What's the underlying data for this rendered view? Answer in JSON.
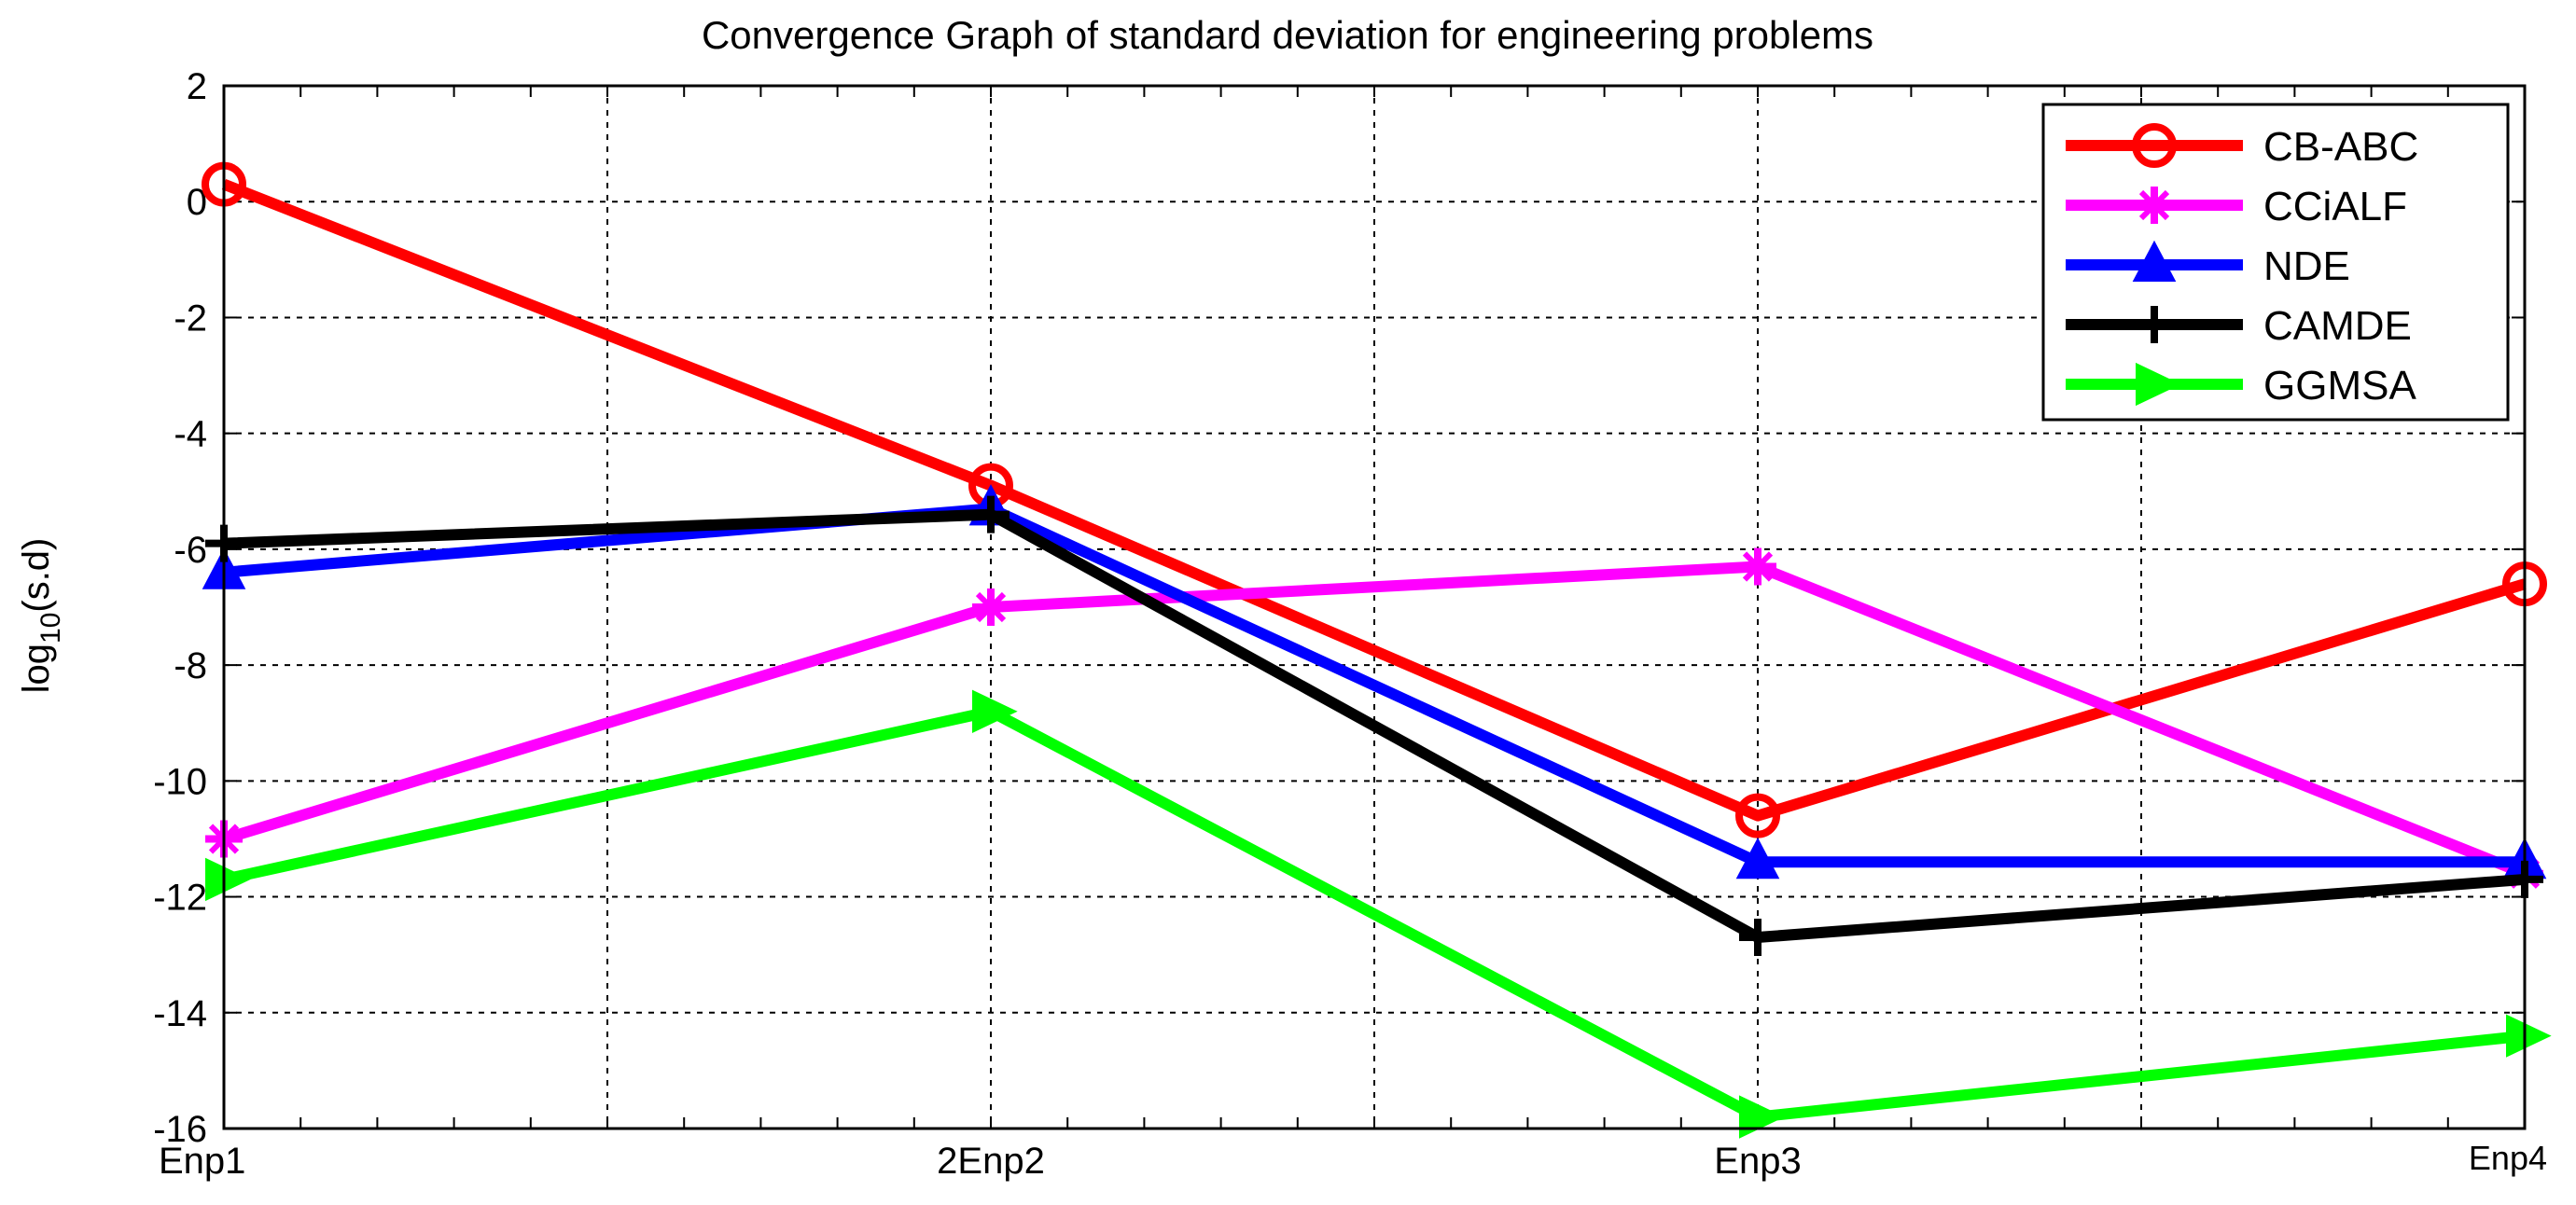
{
  "chart_data": {
    "type": "line",
    "title": "Convergence Graph of standard deviation for engineering problems",
    "xlabel": "",
    "ylabel": "log10(s.d)",
    "ylabel_base": "log",
    "ylabel_sub": "10",
    "ylabel_rest": "(s.d)",
    "categories": [
      "Enp1",
      "2Enp2",
      "Enp3",
      "Enp4"
    ],
    "ylim": [
      -16,
      2
    ],
    "yticks": [
      2,
      0,
      -2,
      -4,
      -6,
      -8,
      -10,
      -12,
      -14,
      -16
    ],
    "ytick_labels": [
      "2",
      "0",
      "-2",
      "-4",
      "-6",
      "-8",
      "-10",
      "-12",
      "-14",
      "-16"
    ],
    "grid": true,
    "legend_position": "top-right",
    "series": [
      {
        "name": "CB-ABC",
        "color": "#ff0000",
        "marker": "circle",
        "values": [
          0.3,
          -4.9,
          -10.6,
          -6.6
        ]
      },
      {
        "name": " CCiALF",
        "color": "#ff00ff",
        "marker": "star",
        "values": [
          -11.0,
          -7.0,
          -6.3,
          -11.6
        ]
      },
      {
        "name": "NDE",
        "color": "#0000ff",
        "marker": "triangle-up",
        "values": [
          -6.4,
          -5.3,
          -11.4,
          -11.4
        ]
      },
      {
        "name": "CAMDE",
        "color": "#000000",
        "marker": "plus",
        "values": [
          -5.9,
          -5.4,
          -12.7,
          -11.7
        ]
      },
      {
        "name": "GGMSA",
        "color": "#00ff00",
        "marker": "triangle-right",
        "values": [
          -11.7,
          -8.8,
          -15.8,
          -14.4
        ]
      }
    ]
  }
}
